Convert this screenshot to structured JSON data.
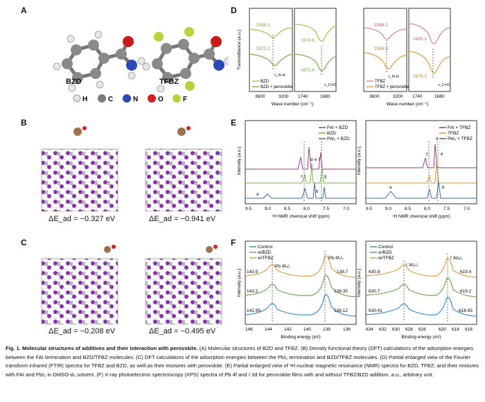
{
  "panels": {
    "A": {
      "label": "A",
      "molecules": [
        "BZD",
        "TFBZ"
      ],
      "atom_legend": [
        {
          "symbol": "H",
          "color": "#e6e6e6"
        },
        {
          "symbol": "C",
          "color": "#7a7a7a"
        },
        {
          "symbol": "N",
          "color": "#2a49b8"
        },
        {
          "symbol": "O",
          "color": "#d42020"
        },
        {
          "symbol": "F",
          "color": "#b9d33a"
        }
      ]
    },
    "B": {
      "label": "B",
      "energies": [
        "ΔE_ad = −0.327 eV",
        "ΔE_ad = −0.941 eV"
      ]
    },
    "C": {
      "label": "C",
      "energies": [
        "ΔE_ad = −0.208 eV",
        "ΔE_ad = −0.495 eV"
      ]
    },
    "D": {
      "label": "D",
      "ylabel": "Transmittance (a.u.)",
      "xlabel": "Wave number (cm⁻¹)",
      "left": {
        "legend": [
          "BZD",
          "BZD + perovskite"
        ],
        "colors": [
          "#b9b94e",
          "#80b050"
        ],
        "peaks_nh": [
          "3389.1",
          "3373.1"
        ],
        "peaks_co": [
          "1674.6",
          "1671.4"
        ],
        "nh_label": "ν_N-H",
        "co_label": "ν_C=O",
        "xticks_a": [
          "3600",
          "3200"
        ],
        "xticks_b": [
          "1740",
          "1680"
        ]
      },
      "right": {
        "legend": [
          "TFBZ",
          "TFBZ + perovskite"
        ],
        "colors": [
          "#d88a9a",
          "#e0a040"
        ],
        "peaks_nh": [
          "3396.2",
          "3368.9"
        ],
        "peaks_co": [
          "1685.1",
          "1679.2"
        ],
        "nh_label": "ν_N-H",
        "co_label": "ν_C=O",
        "xticks_a": [
          "3600",
          "3200"
        ],
        "xticks_b": [
          "1740",
          "1680"
        ]
      }
    },
    "E": {
      "label": "E",
      "ylabel": "Intensity (a.u.)",
      "xlabel": "¹H NMR chemical shift (ppm)",
      "xticks": [
        "9.5",
        "9.0",
        "8.5",
        "8.0",
        "7.5",
        "7.0"
      ],
      "left": {
        "legend": [
          "FAI + BZD",
          "BZD",
          "PbI₂ + BZD"
        ],
        "colors": [
          "#9a3c8a",
          "#7ab040",
          "#3a6ea5"
        ],
        "peak_letters": [
          "a",
          "b",
          "c",
          "d",
          "e",
          "f",
          "g"
        ]
      },
      "right": {
        "legend": [
          "FAI + TFBZ",
          "TFBZ",
          "PbI₂ + TFBZ"
        ],
        "colors": [
          "#9a3c8a",
          "#e09030",
          "#3a6ea5"
        ],
        "peak_letters": [
          "a",
          "b",
          "c",
          "d",
          "e"
        ]
      }
    },
    "F": {
      "label": "F",
      "ylabel": "Intensity (a.u.)",
      "xlabel": "Binding energy (eV)",
      "legend": [
        "Control",
        "w/BZD",
        "w/TFBZ"
      ],
      "colors": [
        "#3a8fd0",
        "#6aaa50",
        "#e0a040"
      ],
      "left": {
        "xticks": [
          "146",
          "144",
          "142",
          "140",
          "138",
          "136"
        ],
        "peak_labels": [
          "Pb 4f₅/₂",
          "Pb 4f₇/₂"
        ],
        "values_left": [
          "143.5",
          "143.2",
          "142.99"
        ],
        "values_right": [
          "138.7",
          "138.35",
          "138.12"
        ]
      },
      "right": {
        "xticks": [
          "634",
          "632",
          "630",
          "628",
          "626",
          "620",
          "618",
          "616"
        ],
        "peak_labels": [
          "I 3d₃/₂",
          "I 3d₅/₂"
        ],
        "values_left": [
          "630.9",
          "630.7",
          "630.41"
        ],
        "values_right": [
          "619.4",
          "619.2",
          "618.93"
        ]
      }
    }
  },
  "caption": {
    "title": "Fig. 1. Molecular structures of additives and their interaction with perovskite.",
    "body": " (A) Molecular structures of BZD and TFBZ. (B) Density functional theory (DFT) calculations of the adsorption energies between the FAI termination and BZD/TFBZ molecules. (C) DFT calculations of the adsorption energies between the PbI₂ termination and BZD/TFBZ molecules. (D) Partial enlarged view of the Fourier transform infrared (FTIR) spectra for TFBZ and BZD, as well as their mixtures with perovskite. (E) Partial enlarged view of ¹H nuclear magnetic resonance (NMR) spectra for BZD, TFBZ, and their mixtures with FAI and PbI₂ in DMSO-d₆ solvent. (F) X-ray photoelectron spectroscopy (XPS) spectra of Pb 4f and I 3d for perovskite films with and without TFBZ/BZD addition. a.u., arbitrary unit."
  }
}
